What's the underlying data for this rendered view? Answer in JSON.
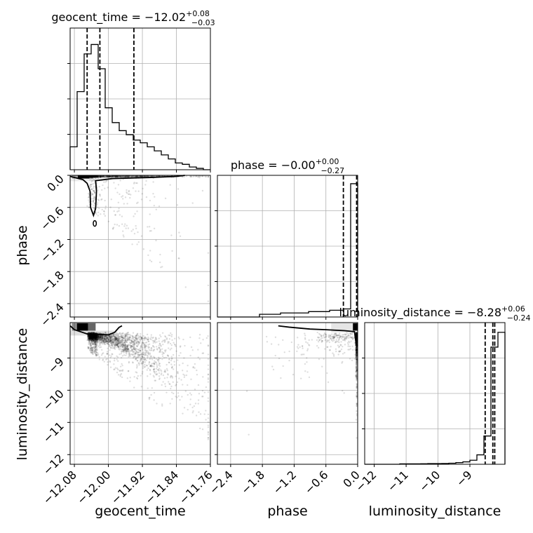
{
  "chart_data": {
    "type": "corner",
    "parameters": [
      "geocent_time",
      "phase",
      "luminosity_distance"
    ],
    "titles": [
      {
        "param": "geocent_time",
        "prefix": "geocent_time = −12.02",
        "sup": "+0.08",
        "sub": "−0.03"
      },
      {
        "param": "phase",
        "prefix": "phase = −0.00",
        "sup": "+0.00",
        "sub": "−0.27"
      },
      {
        "param": "luminosity_distance",
        "prefix": "luminosity_distance = −8.28",
        "sup": "+0.06",
        "sub": "−0.24"
      }
    ],
    "axis_labels": {
      "x": [
        "geocent_time",
        "phase",
        "luminosity_distance"
      ],
      "y": [
        "phase",
        "luminosity_distance"
      ]
    },
    "ranges": {
      "geocent_time": [
        -12.09,
        -11.76
      ],
      "phase": [
        -2.65,
        0.0
      ],
      "luminosity_distance": [
        -12.3,
        -7.9
      ]
    },
    "ticks": {
      "geocent_time": [
        "−12.08",
        "−12.00",
        "−11.92",
        "−11.84",
        "−11.76"
      ],
      "phase": [
        "−2.4",
        "−1.8",
        "−1.2",
        "−0.6",
        "0.0"
      ],
      "luminosity_distance": [
        "−12",
        "−11",
        "−10",
        "−9"
      ]
    },
    "tick_values": {
      "geocent_time": [
        -12.08,
        -12.0,
        -11.92,
        -11.84,
        -11.76
      ],
      "phase": [
        -2.4,
        -1.8,
        -1.2,
        -0.6,
        0.0
      ],
      "luminosity_distance": [
        -12,
        -11,
        -10,
        -9
      ]
    },
    "quantile_lines": {
      "geocent_time": [
        -12.05,
        -12.02,
        -11.94
      ],
      "phase": [
        -0.27,
        0.0
      ],
      "luminosity_distance": [
        -8.52,
        -8.28,
        -8.22
      ]
    },
    "histograms": {
      "geocent_time": {
        "bin_edges": [
          -12.09,
          -12.0735,
          -12.057,
          -12.0405,
          -12.024,
          -12.0075,
          -11.991,
          -11.9745,
          -11.958,
          -11.9415,
          -11.925,
          -11.9085,
          -11.892,
          -11.8755,
          -11.859,
          -11.8425,
          -11.826,
          -11.8095,
          -11.793,
          -11.7765,
          -11.76
        ],
        "counts": [
          0.17,
          0.58,
          0.86,
          0.93,
          0.75,
          0.46,
          0.35,
          0.29,
          0.26,
          0.22,
          0.2,
          0.17,
          0.14,
          0.11,
          0.08,
          0.05,
          0.04,
          0.02,
          0.01,
          0.0
        ]
      },
      "phase": {
        "bin_edges": [
          -2.65,
          -2.5175,
          -2.385,
          -2.2525,
          -2.12,
          -1.9875,
          -1.855,
          -1.7225,
          -1.59,
          -1.4575,
          -1.325,
          -1.1925,
          -1.06,
          -0.9275,
          -0.795,
          -0.6625,
          -0.53,
          -0.3975,
          -0.265,
          -0.1325,
          0.0
        ],
        "counts": [
          0.0,
          0.0,
          0.0,
          0.0,
          0.0,
          0.0,
          0.02,
          0.02,
          0.02,
          0.03,
          0.03,
          0.03,
          0.03,
          0.04,
          0.04,
          0.04,
          0.05,
          0.05,
          0.06,
          0.99
        ]
      },
      "luminosity_distance": {
        "bin_edges": [
          -12.3,
          -12.08,
          -11.86,
          -11.64,
          -11.42,
          -11.2,
          -10.98,
          -10.76,
          -10.54,
          -10.32,
          -10.1,
          -9.88,
          -9.66,
          -9.44,
          -9.22,
          -9.0,
          -8.78,
          -8.56,
          -8.34,
          -8.12,
          -7.9
        ],
        "counts": [
          0.0,
          0.0,
          0.0,
          0.0,
          0.0,
          0.003,
          0.003,
          0.003,
          0.004,
          0.005,
          0.005,
          0.006,
          0.008,
          0.012,
          0.018,
          0.03,
          0.07,
          0.21,
          0.87,
          0.98
        ]
      }
    },
    "grid": true,
    "color": "#000000"
  }
}
